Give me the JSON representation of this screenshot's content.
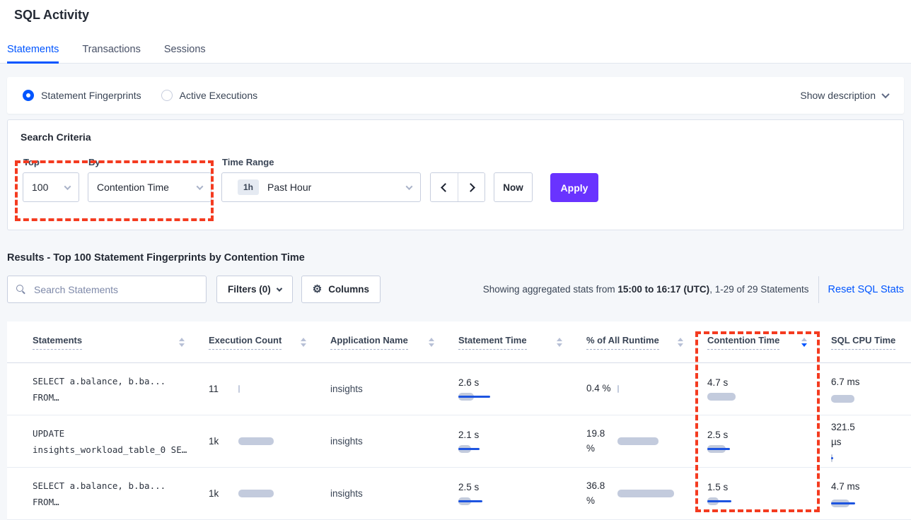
{
  "page": {
    "title": "SQL Activity"
  },
  "tabs": [
    {
      "label": "Statements",
      "active": true
    },
    {
      "label": "Transactions",
      "active": false
    },
    {
      "label": "Sessions",
      "active": false
    }
  ],
  "view_toggle": {
    "options": [
      {
        "label": "Statement Fingerprints",
        "selected": true
      },
      {
        "label": "Active Executions",
        "selected": false
      }
    ],
    "show_description": "Show description"
  },
  "search_criteria": {
    "title": "Search Criteria",
    "top": {
      "label": "Top",
      "value": "100"
    },
    "by": {
      "label": "By",
      "value": "Contention Time"
    },
    "time_range": {
      "label": "Time Range",
      "badge": "1h",
      "value": "Past Hour"
    },
    "now_label": "Now",
    "apply_label": "Apply"
  },
  "results": {
    "heading": "Results - Top 100 Statement Fingerprints by Contention Time",
    "search_placeholder": "Search Statements",
    "filters_label": "Filters (0)",
    "columns_label": "Columns",
    "stats_prefix": "Showing aggregated stats from ",
    "stats_bold": "15:00 to 16:17 (UTC)",
    "stats_suffix": ", 1-29 of 29 Statements",
    "reset_label": "Reset SQL Stats"
  },
  "table": {
    "columns": [
      "Statements",
      "Execution Count",
      "Application Name",
      "Statement Time",
      "% of All Runtime",
      "Contention Time",
      "SQL CPU Time"
    ],
    "sort": {
      "column": "Contention Time",
      "direction": "desc"
    },
    "rows": [
      {
        "statement_line1": "SELECT a.balance, b.ba...",
        "statement_line2": "FROM…",
        "execution_count": "11",
        "application_name": "insights",
        "statement_time": "2.6 s",
        "pct_runtime": "0.4 %",
        "contention_time": "4.7 s",
        "sql_cpu_time": "6.7 ms",
        "bars": {
          "exec_gray": 2,
          "exec_blue": 0,
          "stmt_gray": 22,
          "stmt_blue": 45,
          "pct_gray": 2,
          "pct_blue": 0,
          "cont_gray": 40,
          "cont_blue": 0,
          "cpu_gray": 33,
          "cpu_blue": 0
        }
      },
      {
        "statement_line1": "UPDATE",
        "statement_line2": "insights_workload_table_0 SE…",
        "execution_count": "1k",
        "application_name": "insights",
        "statement_time": "2.1 s",
        "pct_runtime": "19.8 %",
        "contention_time": "2.5 s",
        "sql_cpu_time": "321.5 µs",
        "bars": {
          "exec_gray": 50,
          "exec_blue": 0,
          "stmt_gray": 18,
          "stmt_blue": 30,
          "pct_gray": 58,
          "pct_blue": 0,
          "cont_gray": 26,
          "cont_blue": 32,
          "cpu_gray": 2,
          "cpu_blue": 3
        }
      },
      {
        "statement_line1": "SELECT a.balance, b.ba...",
        "statement_line2": "FROM…",
        "execution_count": "1k",
        "application_name": "insights",
        "statement_time": "2.5 s",
        "pct_runtime": "36.8 %",
        "contention_time": "1.5 s",
        "sql_cpu_time": "4.7 ms",
        "bars": {
          "exec_gray": 50,
          "exec_blue": 0,
          "stmt_gray": 18,
          "stmt_blue": 34,
          "pct_gray": 80,
          "pct_blue": 0,
          "cont_gray": 16,
          "cont_blue": 34,
          "cpu_gray": 26,
          "cpu_blue": 34
        }
      }
    ]
  },
  "icons": {
    "gear": "⚙",
    "search": "css-shape",
    "chevron_down": "css-shape",
    "chevron_left": "css-shape",
    "chevron_right": "css-shape",
    "sort_caret": "css-shape"
  },
  "colors": {
    "accent_blue": "#0055ff",
    "apply_purple": "#6933ff",
    "annotation_red": "#f43b20",
    "bar_gray": "#c3cbdd",
    "bar_blue": "#1d54e0"
  }
}
